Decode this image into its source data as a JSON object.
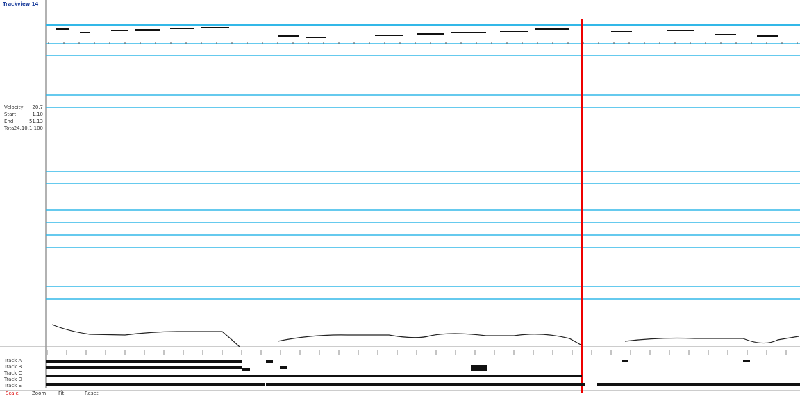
{
  "panel": {
    "title": "Trackview 14",
    "fields": [
      {
        "label": "Velocity",
        "value": "20.7"
      },
      {
        "label": "Start",
        "value": "1.10"
      },
      {
        "label": "End",
        "value": "51.13"
      },
      {
        "label": "Total",
        "value": "24.10.1.100"
      }
    ],
    "tracks": [
      "Track A",
      "Track B",
      "Track C",
      "Track D",
      "Track E"
    ]
  },
  "footer": {
    "items": [
      "Scale",
      "Zoom",
      "Fit",
      "Reset"
    ]
  }
}
